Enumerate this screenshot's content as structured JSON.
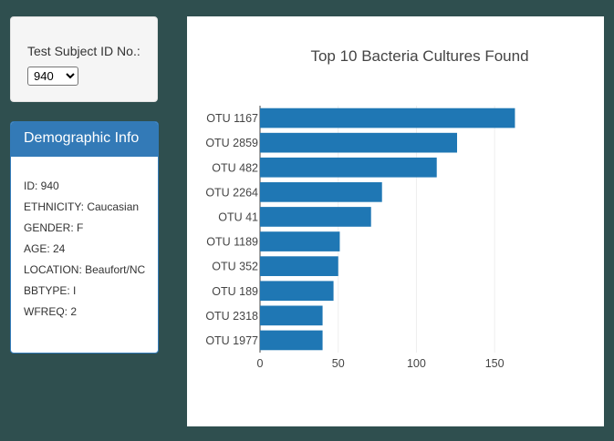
{
  "selector": {
    "label": "Test Subject ID No.:",
    "selected": "940"
  },
  "demographics": {
    "title": "Demographic Info",
    "lines": [
      "ID: 940",
      "ETHNICITY: Caucasian",
      "GENDER: F",
      "AGE: 24",
      "LOCATION: Beaufort/NC",
      "BBTYPE: I",
      "WFREQ: 2"
    ]
  },
  "colors": {
    "background": "#2f4f4f",
    "bar": "#1f77b4",
    "panel": "#337ab7"
  },
  "chart_data": {
    "type": "bar",
    "orientation": "horizontal",
    "title": "Top 10 Bacteria Cultures Found",
    "categories": [
      "OTU 1167",
      "OTU 2859",
      "OTU 482",
      "OTU 2264",
      "OTU 41",
      "OTU 1189",
      "OTU 352",
      "OTU 189",
      "OTU 2318",
      "OTU 1977"
    ],
    "values": [
      163,
      126,
      113,
      78,
      71,
      51,
      50,
      47,
      40,
      40
    ],
    "xlim": [
      0,
      168
    ],
    "xticks": [
      0,
      50,
      100,
      150
    ],
    "grid": true,
    "legend": "none"
  }
}
